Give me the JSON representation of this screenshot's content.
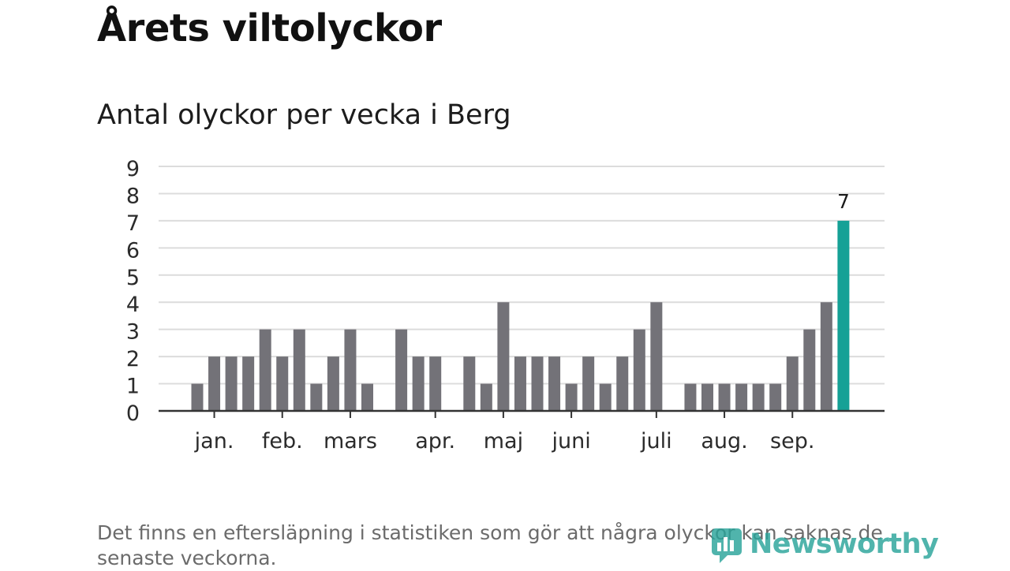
{
  "title": "Årets viltolyckor",
  "subtitle": "Antal olyckor per vecka i Berg",
  "footnote": "Det finns en eftersläpning i statistiken som gör att några olyckor kan saknas de senaste veckorna.",
  "brand": {
    "name": "Newsworthy",
    "icon": "newsworthy-logo-icon",
    "color": "#2aa49a"
  },
  "colors": {
    "bar": "#737278",
    "highlight": "#15a196",
    "grid": "#dcdcdc",
    "axis": "#333333"
  },
  "chart_data": {
    "type": "bar",
    "title": "Antal olyckor per vecka i Berg",
    "xlabel": "",
    "ylabel": "",
    "ylim": [
      0,
      9
    ],
    "yticks": [
      0,
      1,
      2,
      3,
      4,
      5,
      6,
      7,
      8,
      9
    ],
    "grid": true,
    "values": [
      1,
      2,
      2,
      2,
      3,
      2,
      3,
      1,
      2,
      3,
      1,
      0,
      3,
      2,
      2,
      0,
      2,
      1,
      4,
      2,
      2,
      2,
      1,
      2,
      1,
      2,
      3,
      4,
      0,
      1,
      1,
      1,
      1,
      1,
      1,
      2,
      3,
      4,
      7
    ],
    "highlight_index": 38,
    "month_labels": [
      {
        "label": "jan.",
        "week": 1
      },
      {
        "label": "feb.",
        "week": 5
      },
      {
        "label": "mars",
        "week": 9
      },
      {
        "label": "apr.",
        "week": 14
      },
      {
        "label": "maj",
        "week": 18
      },
      {
        "label": "juni",
        "week": 22
      },
      {
        "label": "juli",
        "week": 27
      },
      {
        "label": "aug.",
        "week": 31
      },
      {
        "label": "sep.",
        "week": 35
      }
    ],
    "annotations": [
      {
        "index": 38,
        "text": "7"
      }
    ]
  }
}
